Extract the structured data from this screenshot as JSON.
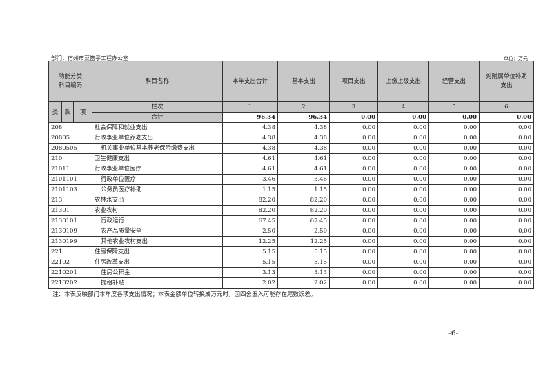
{
  "department": "部门：宿州市菜篮子工程办公室",
  "unit": "单位：万元",
  "headers": {
    "code": "功能分类科目编码",
    "name": "科目名称",
    "c1": "本年支出合计",
    "c2": "基本支出",
    "c3": "项目支出",
    "c4": "上缴上级支出",
    "c5": "经营支出",
    "c6": "对附属单位补助支出",
    "lei": "类",
    "kuan": "款",
    "xiang": "项",
    "lanci": "栏次",
    "n1": "1",
    "n2": "2",
    "n3": "3",
    "n4": "4",
    "n5": "5",
    "n6": "6"
  },
  "total": {
    "label": "合计",
    "values": [
      "96.34",
      "96.34",
      "0.00",
      "0.00",
      "0.00",
      "0.00"
    ]
  },
  "rows": [
    {
      "code": "208",
      "name": "社会保障和就业支出",
      "level": 0,
      "values": [
        "4.38",
        "4.38",
        "0.00",
        "0.00",
        "0.00",
        "0.00"
      ]
    },
    {
      "code": "20805",
      "name": "行政事业单位养老支出",
      "level": 0,
      "values": [
        "4.38",
        "4.38",
        "0.00",
        "0.00",
        "0.00",
        "0.00"
      ]
    },
    {
      "code": "2080505",
      "name": "机关事业单位基本养老保险缴费支出",
      "level": 1,
      "values": [
        "4.38",
        "4.38",
        "0.00",
        "0.00",
        "0.00",
        "0.00"
      ]
    },
    {
      "code": "210",
      "name": "卫生健康支出",
      "level": 0,
      "values": [
        "4.61",
        "4.61",
        "0.00",
        "0.00",
        "0.00",
        "0.00"
      ]
    },
    {
      "code": "21011",
      "name": "行政事业单位医疗",
      "level": 0,
      "values": [
        "4.61",
        "4.61",
        "0.00",
        "0.00",
        "0.00",
        "0.00"
      ]
    },
    {
      "code": "2101101",
      "name": "行政单位医疗",
      "level": 1,
      "values": [
        "3.46",
        "3.46",
        "0.00",
        "0.00",
        "0.00",
        "0.00"
      ]
    },
    {
      "code": "2101103",
      "name": "公务员医疗补助",
      "level": 1,
      "values": [
        "1.15",
        "1.15",
        "0.00",
        "0.00",
        "0.00",
        "0.00"
      ]
    },
    {
      "code": "213",
      "name": "农林水支出",
      "level": 0,
      "values": [
        "82.20",
        "82.20",
        "0.00",
        "0.00",
        "0.00",
        "0.00"
      ]
    },
    {
      "code": "21301",
      "name": "农业农村",
      "level": 0,
      "values": [
        "82.20",
        "82.20",
        "0.00",
        "0.00",
        "0.00",
        "0.00"
      ]
    },
    {
      "code": "2130101",
      "name": "行政运行",
      "level": 1,
      "values": [
        "67.45",
        "67.45",
        "0.00",
        "0.00",
        "0.00",
        "0.00"
      ]
    },
    {
      "code": "2130109",
      "name": "农产品质量安全",
      "level": 1,
      "values": [
        "2.50",
        "2.50",
        "0.00",
        "0.00",
        "0.00",
        "0.00"
      ]
    },
    {
      "code": "2130199",
      "name": "其他农业农村支出",
      "level": 1,
      "values": [
        "12.25",
        "12.25",
        "0.00",
        "0.00",
        "0.00",
        "0.00"
      ]
    },
    {
      "code": "221",
      "name": "住房保障支出",
      "level": 0,
      "values": [
        "5.15",
        "5.15",
        "0.00",
        "0.00",
        "0.00",
        "0.00"
      ]
    },
    {
      "code": "22102",
      "name": "住房改革支出",
      "level": 0,
      "values": [
        "5.15",
        "5.15",
        "0.00",
        "0.00",
        "0.00",
        "0.00"
      ]
    },
    {
      "code": "2210201",
      "name": "住房公积金",
      "level": 1,
      "values": [
        "3.13",
        "3.13",
        "0.00",
        "0.00",
        "0.00",
        "0.00"
      ]
    },
    {
      "code": "2210202",
      "name": "提租补贴",
      "level": 1,
      "values": [
        "2.02",
        "2.02",
        "0.00",
        "0.00",
        "0.00",
        "0.00"
      ]
    }
  ],
  "note": "注：本表反映部门本年度各项支出情况；本表金额单位转换成万元时，因四舍五入可能存在尾数误差。",
  "page_number": "-6-"
}
